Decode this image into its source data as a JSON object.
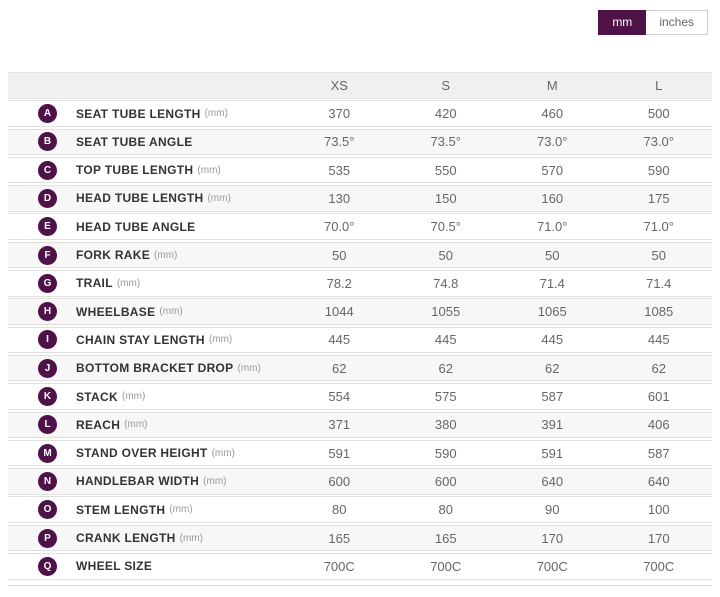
{
  "unit_toggle": {
    "options": [
      {
        "label": "mm",
        "selected": true
      },
      {
        "label": "inches",
        "selected": false
      }
    ]
  },
  "colors": {
    "accent_purple": "#4e1148",
    "header_bg": "#f0f0f0",
    "alt_row_bg": "#f7f7f7",
    "border": "#e0e0e0",
    "label_text": "#333333",
    "value_text": "#666666"
  },
  "table": {
    "columns": [
      "XS",
      "S",
      "M",
      "L"
    ],
    "rows": [
      {
        "letter": "A",
        "label": "SEAT TUBE LENGTH",
        "unit": "(mm)",
        "values": [
          "370",
          "420",
          "460",
          "500"
        ]
      },
      {
        "letter": "B",
        "label": "SEAT TUBE ANGLE",
        "unit": "",
        "values": [
          "73.5°",
          "73.5°",
          "73.0°",
          "73.0°"
        ]
      },
      {
        "letter": "C",
        "label": "TOP TUBE LENGTH",
        "unit": "(mm)",
        "values": [
          "535",
          "550",
          "570",
          "590"
        ]
      },
      {
        "letter": "D",
        "label": "HEAD TUBE LENGTH",
        "unit": "(mm)",
        "values": [
          "130",
          "150",
          "160",
          "175"
        ]
      },
      {
        "letter": "E",
        "label": "HEAD TUBE ANGLE",
        "unit": "",
        "values": [
          "70.0°",
          "70.5°",
          "71.0°",
          "71.0°"
        ]
      },
      {
        "letter": "F",
        "label": "FORK RAKE",
        "unit": "(mm)",
        "values": [
          "50",
          "50",
          "50",
          "50"
        ]
      },
      {
        "letter": "G",
        "label": "TRAIL",
        "unit": "(mm)",
        "values": [
          "78.2",
          "74.8",
          "71.4",
          "71.4"
        ]
      },
      {
        "letter": "H",
        "label": "WHEELBASE",
        "unit": "(mm)",
        "values": [
          "1044",
          "1055",
          "1065",
          "1085"
        ]
      },
      {
        "letter": "I",
        "label": "CHAIN STAY LENGTH",
        "unit": "(mm)",
        "values": [
          "445",
          "445",
          "445",
          "445"
        ]
      },
      {
        "letter": "J",
        "label": "BOTTOM BRACKET DROP",
        "unit": "(mm)",
        "values": [
          "62",
          "62",
          "62",
          "62"
        ]
      },
      {
        "letter": "K",
        "label": "STACK",
        "unit": "(mm)",
        "values": [
          "554",
          "575",
          "587",
          "601"
        ]
      },
      {
        "letter": "L",
        "label": "REACH",
        "unit": "(mm)",
        "values": [
          "371",
          "380",
          "391",
          "406"
        ]
      },
      {
        "letter": "M",
        "label": "STAND OVER HEIGHT",
        "unit": "(mm)",
        "values": [
          "591",
          "590",
          "591",
          "587"
        ]
      },
      {
        "letter": "N",
        "label": "HANDLEBAR WIDTH",
        "unit": "(mm)",
        "values": [
          "600",
          "600",
          "640",
          "640"
        ]
      },
      {
        "letter": "O",
        "label": "STEM LENGTH",
        "unit": "(mm)",
        "values": [
          "80",
          "80",
          "90",
          "100"
        ]
      },
      {
        "letter": "P",
        "label": "CRANK LENGTH",
        "unit": "(mm)",
        "values": [
          "165",
          "165",
          "170",
          "170"
        ]
      },
      {
        "letter": "Q",
        "label": "WHEEL SIZE",
        "unit": "",
        "values": [
          "700C",
          "700C",
          "700C",
          "700C"
        ]
      }
    ]
  }
}
